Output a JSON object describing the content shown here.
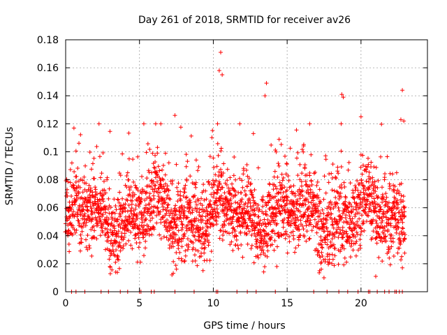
{
  "chart_data": {
    "type": "scatter",
    "title": "Day 261 of 2018, SRMTID for receiver av26",
    "xlabel": "GPS time / hours",
    "ylabel": "SRMTID / TECUs",
    "xlim": [
      0,
      24.5
    ],
    "ylim": [
      0,
      0.18
    ],
    "xticks": [
      0,
      5,
      10,
      15,
      20
    ],
    "yticks": [
      0,
      0.02,
      0.04,
      0.06,
      0.08,
      0.1,
      0.12,
      0.14,
      0.16,
      0.18
    ],
    "ytick_labels": [
      "0",
      "0.02",
      "0.04",
      "0.06",
      "0.08",
      "0.1",
      "0.12",
      "0.14",
      "0.16",
      "0.18"
    ],
    "grid": true,
    "marker": "plus",
    "color": "#ff0000",
    "series": [
      {
        "name": "SRMTID",
        "points_summary": "dense cloud of ~3000 points between 0.01 and 0.10 TECU across 0-23 h",
        "x_range": [
          0,
          23
        ],
        "typical_range": [
          0.02,
          0.09
        ],
        "outliers": [
          {
            "x": 10.5,
            "y": 0.171
          },
          {
            "x": 10.4,
            "y": 0.158
          },
          {
            "x": 10.6,
            "y": 0.155
          },
          {
            "x": 13.6,
            "y": 0.149
          },
          {
            "x": 13.5,
            "y": 0.14
          },
          {
            "x": 22.8,
            "y": 0.144
          },
          {
            "x": 18.7,
            "y": 0.141
          },
          {
            "x": 18.8,
            "y": 0.139
          },
          {
            "x": 7.4,
            "y": 0.126
          },
          {
            "x": 20.0,
            "y": 0.125
          },
          {
            "x": 22.7,
            "y": 0.123
          },
          {
            "x": 22.9,
            "y": 0.122
          },
          {
            "x": 3.0,
            "y": 0.018
          },
          {
            "x": 7.2,
            "y": 0.012
          },
          {
            "x": 14.3,
            "y": 0.018
          },
          {
            "x": 17.2,
            "y": 0.015
          },
          {
            "x": 21.0,
            "y": 0.011
          }
        ],
        "zero_markers_x": [
          0.4,
          0.7,
          1.3,
          2.4,
          2.9,
          3.7,
          4.2,
          5.0,
          5.1,
          5.8,
          6.0,
          7.4,
          8.7,
          10.2,
          10.3,
          11.6,
          12.3,
          12.9,
          14.2,
          16.8,
          17.7,
          18.5,
          19.1,
          19.8,
          20.5,
          20.6,
          21.1,
          21.6,
          21.9,
          22.3,
          22.4,
          22.6,
          22.8
        ]
      }
    ]
  }
}
